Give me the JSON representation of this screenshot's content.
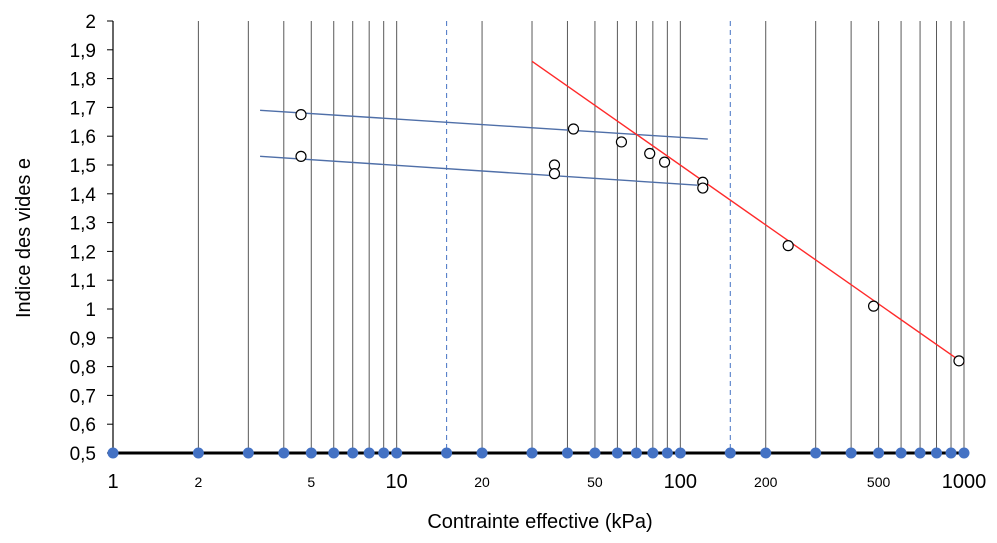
{
  "chart_data": {
    "type": "scatter",
    "title": "",
    "xlabel": "Contrainte effective (kPa)",
    "ylabel": "Indice des vides e",
    "x_scale": "log",
    "xlim": [
      1,
      1000
    ],
    "ylim": [
      0.5,
      2
    ],
    "y_ticks": [
      "0,5",
      "0,6",
      "0,7",
      "0,8",
      "0,9",
      "1",
      "1,1",
      "1,2",
      "1,3",
      "1,4",
      "1,5",
      "1,6",
      "1,7",
      "1,8",
      "1,9",
      "2"
    ],
    "x_tick_labels": [
      {
        "value": 1,
        "label": "1",
        "major": true
      },
      {
        "value": 2,
        "label": "2",
        "major": false
      },
      {
        "value": 5,
        "label": "5",
        "major": false
      },
      {
        "value": 10,
        "label": "10",
        "major": true
      },
      {
        "value": 20,
        "label": "20",
        "major": false
      },
      {
        "value": 50,
        "label": "50",
        "major": false
      },
      {
        "value": 100,
        "label": "100",
        "major": true
      },
      {
        "value": 200,
        "label": "200",
        "major": false
      },
      {
        "value": 500,
        "label": "500",
        "major": false
      },
      {
        "value": 1000,
        "label": "1000",
        "major": true
      }
    ],
    "grid": "vertical",
    "dashed_gridlines_x": [
      15,
      150
    ],
    "axis_markers_x": [
      1,
      2,
      3,
      4,
      5,
      6,
      7,
      8,
      9,
      10,
      15,
      20,
      30,
      40,
      50,
      60,
      70,
      80,
      90,
      100,
      150,
      200,
      300,
      400,
      500,
      600,
      700,
      800,
      900,
      1000
    ],
    "points": [
      {
        "x": 4.6,
        "y": 1.675
      },
      {
        "x": 4.6,
        "y": 1.53
      },
      {
        "x": 36,
        "y": 1.5
      },
      {
        "x": 36,
        "y": 1.47
      },
      {
        "x": 42,
        "y": 1.625
      },
      {
        "x": 62,
        "y": 1.58
      },
      {
        "x": 78,
        "y": 1.54
      },
      {
        "x": 88,
        "y": 1.51
      },
      {
        "x": 120,
        "y": 1.44
      },
      {
        "x": 120,
        "y": 1.42
      },
      {
        "x": 240,
        "y": 1.22
      },
      {
        "x": 480,
        "y": 1.01
      },
      {
        "x": 960,
        "y": 0.82
      }
    ],
    "lines": [
      {
        "color": "#4f6fa8",
        "x": [
          3.3,
          125
        ],
        "y": [
          1.69,
          1.59
        ]
      },
      {
        "color": "#4f6fa8",
        "x": [
          3.3,
          115
        ],
        "y": [
          1.53,
          1.43
        ]
      },
      {
        "color": "#ff2a2a",
        "x": [
          30,
          1000
        ],
        "y": [
          1.86,
          0.81
        ]
      }
    ],
    "colors": {
      "axis": "#000000",
      "gridline": "#595959",
      "dashed_gridline": "#4472c4",
      "marker": "#4472c4",
      "point_stroke": "#000000"
    }
  }
}
